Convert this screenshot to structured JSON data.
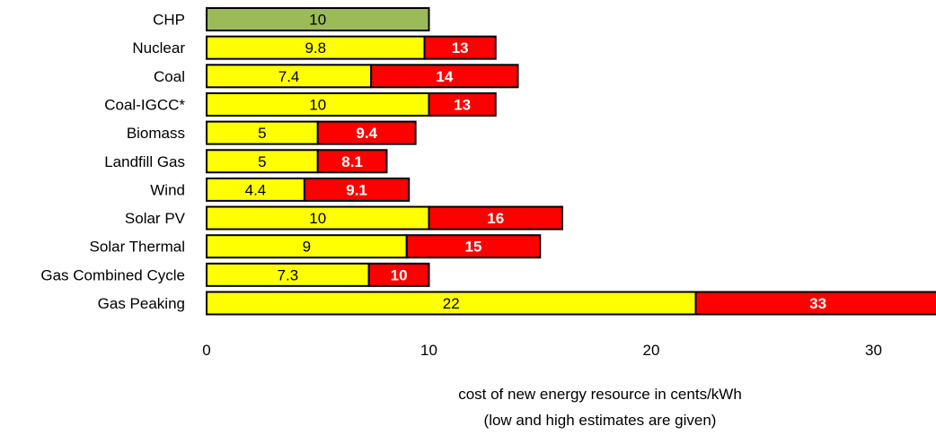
{
  "chart_data": {
    "type": "bar",
    "orientation": "horizontal",
    "stacked": true,
    "categories": [
      "CHP",
      "Nuclear",
      "Coal",
      "Coal-IGCC*",
      "Biomass",
      "Landfill Gas",
      "Wind",
      "Solar PV",
      "Solar Thermal",
      "Gas Combined Cycle",
      "Gas Peaking"
    ],
    "low": [
      10,
      9.8,
      7.4,
      10,
      5,
      5,
      4.4,
      10,
      9,
      7.3,
      22
    ],
    "high": [
      null,
      13,
      14,
      13,
      9.4,
      8.1,
      9.1,
      16,
      15,
      10,
      33
    ],
    "x_ticks": [
      0,
      10,
      20,
      30
    ],
    "xlim": [
      0,
      33
    ],
    "xlabel": "cost of new energy resource in cents/kWh",
    "xlabel_sub": "(low and high estimates are given)",
    "grid": false,
    "colors": {
      "low": "#ffff00",
      "high": "#ff0000",
      "single": "#9bbb59",
      "border": "#000000"
    }
  }
}
